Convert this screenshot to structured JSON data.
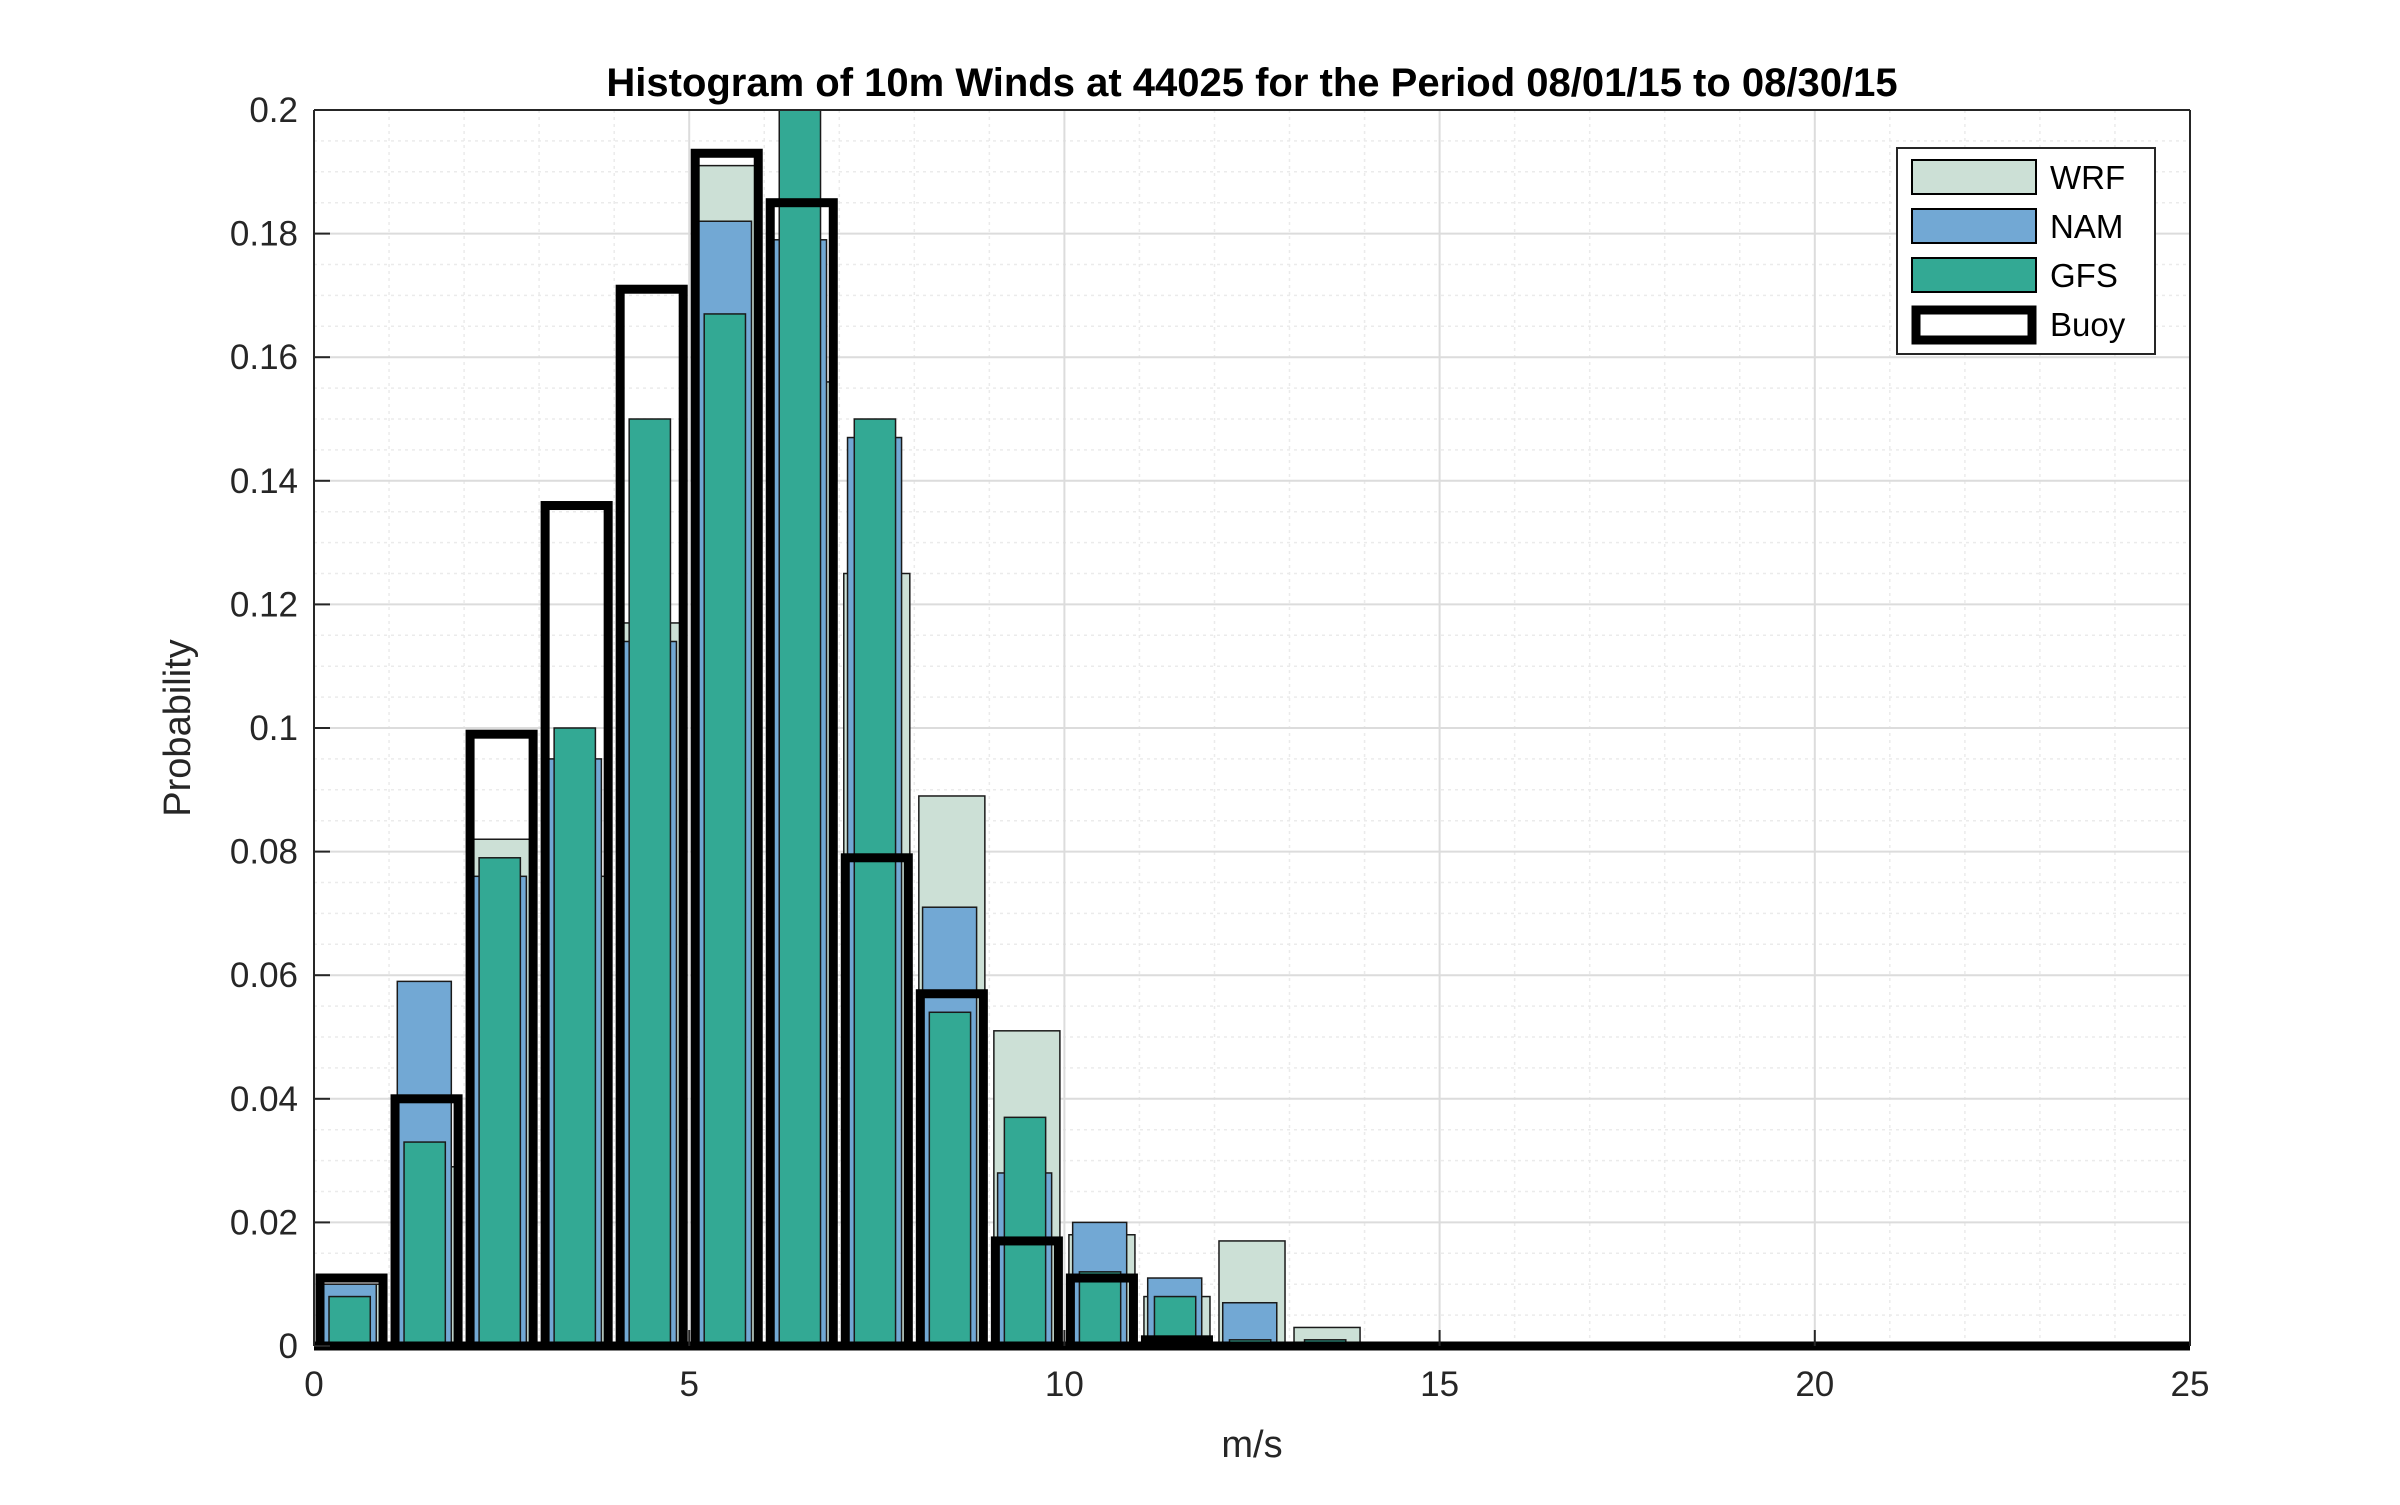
{
  "chart_data": {
    "type": "bar",
    "title": "Histogram of 10m Winds at 44025 for the Period 08/01/15 to 08/30/15",
    "xlabel": "m/s",
    "ylabel": "Probability",
    "xlim": [
      0,
      25
    ],
    "ylim": [
      0,
      0.2
    ],
    "xticks": [
      0,
      5,
      10,
      15,
      20,
      25
    ],
    "yticks": [
      0,
      0.02,
      0.04,
      0.06,
      0.08,
      0.1,
      0.12,
      0.14,
      0.16,
      0.18,
      0.2
    ],
    "ytick_labels": [
      "0",
      "0.02",
      "0.04",
      "0.06",
      "0.08",
      "0.1",
      "0.12",
      "0.14",
      "0.16",
      "0.18",
      "0.2"
    ],
    "grid": true,
    "minor_grid": true,
    "legend_position": "top-right",
    "bin_edges": [
      0,
      1,
      2,
      3,
      4,
      5,
      6,
      7,
      8,
      9,
      10,
      11,
      12,
      13,
      14,
      15,
      16,
      17,
      18,
      19,
      20,
      21,
      22,
      23,
      24,
      25
    ],
    "series": [
      {
        "name": "WRF",
        "color": "#cce0d6",
        "style": "filled",
        "values": [
          0.01,
          0.029,
          0.082,
          0.076,
          0.117,
          0.191,
          0.156,
          0.125,
          0.089,
          0.051,
          0.018,
          0.008,
          0.017,
          0.003,
          0.0,
          0.0,
          0.0,
          0.0,
          0.0,
          0.0,
          0.0,
          0.0,
          0.0,
          0.0,
          0.0
        ]
      },
      {
        "name": "NAM",
        "color": "#72a8d4",
        "style": "filled",
        "values": [
          0.01,
          0.059,
          0.076,
          0.095,
          0.114,
          0.182,
          0.179,
          0.147,
          0.071,
          0.028,
          0.02,
          0.011,
          0.007,
          0.0,
          0.0,
          0.0,
          0.0,
          0.0,
          0.0,
          0.0,
          0.0,
          0.0,
          0.0,
          0.0,
          0.0
        ]
      },
      {
        "name": "GFS",
        "color": "#33a994",
        "style": "filled",
        "values": [
          0.008,
          0.033,
          0.079,
          0.1,
          0.15,
          0.167,
          0.2,
          0.15,
          0.054,
          0.037,
          0.012,
          0.008,
          0.001,
          0.001,
          0.0,
          0.0,
          0.0,
          0.0,
          0.0,
          0.0,
          0.0,
          0.0,
          0.0,
          0.0,
          0.0
        ]
      },
      {
        "name": "Buoy",
        "color": "#000000",
        "style": "outline",
        "values": [
          0.011,
          0.04,
          0.099,
          0.136,
          0.171,
          0.193,
          0.185,
          0.079,
          0.057,
          0.017,
          0.011,
          0.001,
          0.0,
          0.0,
          0.0,
          0.0,
          0.0,
          0.0,
          0.0,
          0.0,
          0.0,
          0.0,
          0.0,
          0.0,
          0.0
        ]
      }
    ]
  }
}
